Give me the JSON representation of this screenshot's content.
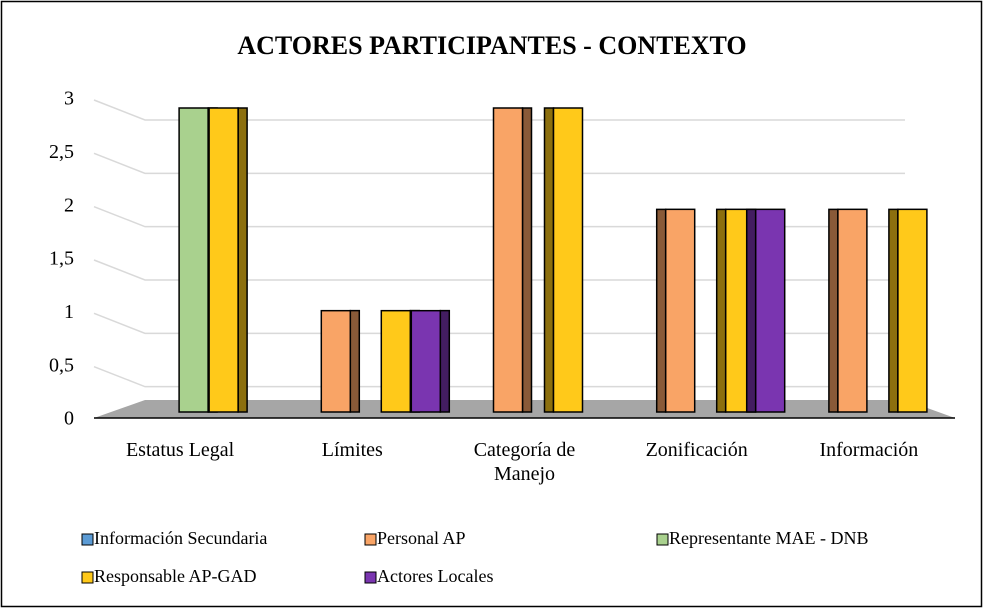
{
  "chart_data": {
    "type": "bar3d",
    "title": "ACTORES PARTICIPANTES - CONTEXTO",
    "categories": [
      "Estatus Legal",
      "Límites",
      "Categoría de Manejo",
      "Zonificación",
      "Información"
    ],
    "series": [
      {
        "name": "Información Secundaria",
        "color": "#5b9bd5",
        "values": [
          0,
          0,
          0,
          0,
          0
        ]
      },
      {
        "name": "Personal AP",
        "color": "#f9a466",
        "values": [
          0,
          1,
          3,
          2,
          2
        ]
      },
      {
        "name": "Representante MAE - DNB",
        "color": "#a9d18e",
        "values": [
          3,
          0,
          0,
          0,
          0
        ]
      },
      {
        "name": "Responsable AP-GAD",
        "color": "#ffc91a",
        "values": [
          3,
          1,
          3,
          2,
          2
        ]
      },
      {
        "name": "Actores Locales",
        "color": "#7a35b0",
        "values": [
          0,
          1,
          0,
          2,
          0
        ]
      }
    ],
    "ylim": [
      0,
      3
    ],
    "yticks": [
      0,
      {
        "value": 0.5,
        "label": "0,5"
      },
      1,
      {
        "value": 1.5,
        "label": "1,5"
      },
      2,
      {
        "value": 2.5,
        "label": "2,5"
      },
      3
    ],
    "grid": true
  }
}
